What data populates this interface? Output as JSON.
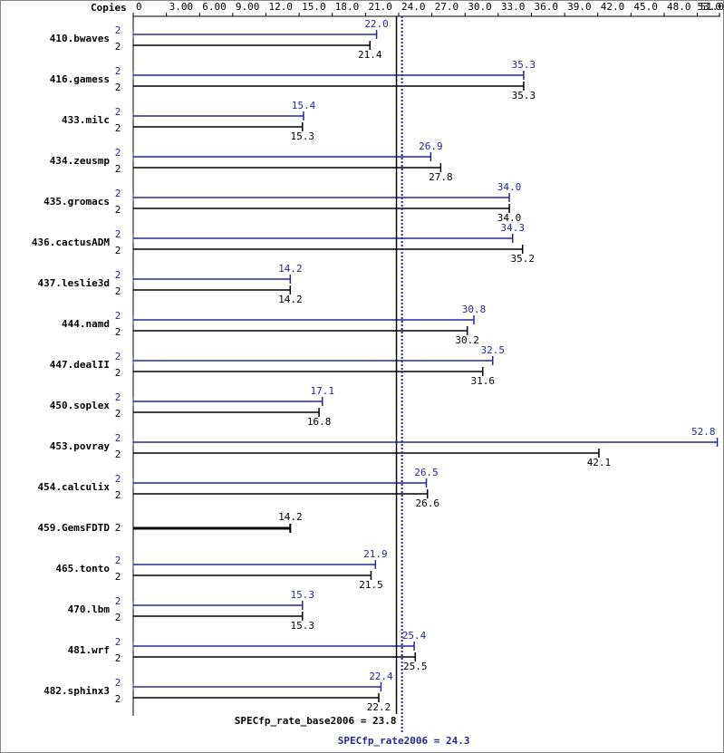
{
  "chart_data": {
    "type": "bar",
    "orientation": "horizontal",
    "copies_label": "Copies",
    "categories": [
      "410.bwaves",
      "416.gamess",
      "433.milc",
      "434.zeusmp",
      "435.gromacs",
      "436.cactusADM",
      "437.leslie3d",
      "444.namd",
      "447.dealII",
      "450.soplex",
      "453.povray",
      "454.calculix",
      "459.GemsFDTD",
      "465.tonto",
      "470.lbm",
      "481.wrf",
      "482.sphinx3"
    ],
    "series": [
      {
        "color": "#27279a",
        "copies": [
          2,
          2,
          2,
          2,
          2,
          2,
          2,
          2,
          2,
          2,
          2,
          2,
          null,
          2,
          2,
          2,
          2
        ],
        "values": [
          22.0,
          35.3,
          15.4,
          26.9,
          34.0,
          34.3,
          14.2,
          30.8,
          32.5,
          17.1,
          52.8,
          26.5,
          null,
          21.9,
          15.3,
          25.4,
          22.4
        ],
        "value_labels": [
          "22.0",
          "35.3",
          "15.4",
          "26.9",
          "34.0",
          "34.3",
          "14.2",
          "30.8",
          "32.5",
          "17.1",
          "52.8",
          "26.5",
          null,
          "21.9",
          "15.3",
          "25.4",
          "22.4"
        ]
      },
      {
        "color": "#000000",
        "copies": [
          2,
          2,
          2,
          2,
          2,
          2,
          2,
          2,
          2,
          2,
          2,
          2,
          2,
          2,
          2,
          2,
          2
        ],
        "values": [
          21.4,
          35.3,
          15.3,
          27.8,
          34.0,
          35.2,
          14.2,
          30.2,
          31.6,
          16.8,
          42.1,
          26.6,
          14.2,
          21.5,
          15.3,
          25.5,
          22.2
        ],
        "value_labels": [
          "21.4",
          "35.3",
          "15.3",
          "27.8",
          "34.0",
          "35.2",
          "14.2",
          "30.2",
          "31.6",
          "16.8",
          "42.1",
          "26.6",
          "14.2",
          "21.5",
          "15.3",
          "25.5",
          "22.2"
        ]
      }
    ],
    "xlim": [
      0,
      53
    ],
    "xticks": [
      0,
      {
        "value": 3,
        "label": "3.00"
      },
      {
        "value": 6,
        "label": "6.00"
      },
      {
        "value": 9,
        "label": "9.00"
      },
      {
        "value": 12,
        "label": "12.0"
      },
      {
        "value": 15,
        "label": "15.0"
      },
      {
        "value": 18,
        "label": "18.0"
      },
      {
        "value": 21,
        "label": "21.0"
      },
      {
        "value": 24,
        "label": "24.0"
      },
      {
        "value": 27,
        "label": "27.0"
      },
      {
        "value": 30,
        "label": "30.0"
      },
      {
        "value": 33,
        "label": "33.0"
      },
      {
        "value": 36,
        "label": "36.0"
      },
      {
        "value": 39,
        "label": "39.0"
      },
      {
        "value": 42,
        "label": "42.0"
      },
      {
        "value": 45,
        "label": "45.0"
      },
      {
        "value": 48,
        "label": "48.0"
      },
      {
        "value": 51,
        "label": "51.0"
      },
      {
        "value": 53,
        "label": "53.0"
      }
    ],
    "reference_lines": [
      {
        "label": "SPECfp_rate_base2006 = 23.8",
        "value": 23.8,
        "color": "#000000",
        "style": "solid"
      },
      {
        "label": "SPECfp_rate2006 = 24.3",
        "value": 24.3,
        "color": "#27279a",
        "style": "dotted"
      }
    ]
  }
}
